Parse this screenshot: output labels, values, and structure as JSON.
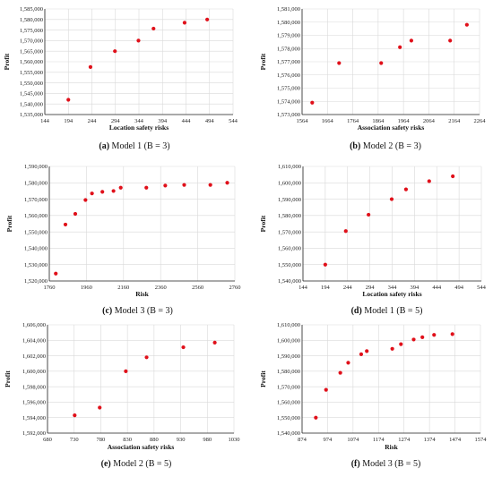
{
  "figure": {
    "marker_color": "#e0101a",
    "axis_color": "#222222",
    "grid_color": "#d9d9d9"
  },
  "chart_data": [
    {
      "type": "scatter",
      "caption_letter": "(a)",
      "caption_rest": " Model 1 (B = 3)",
      "xlabel": "Location safety risks",
      "ylabel": "Profit",
      "xlim": [
        144,
        544
      ],
      "ylim": [
        1535000,
        1585000
      ],
      "xticks": [
        144,
        194,
        244,
        294,
        344,
        394,
        444,
        494,
        544
      ],
      "xtick_labels": [
        "144",
        "194",
        "244",
        "294",
        "344",
        "394",
        "444",
        "494",
        "544"
      ],
      "yticks": [
        1535000,
        1540000,
        1545000,
        1550000,
        1555000,
        1560000,
        1565000,
        1570000,
        1575000,
        1580000,
        1585000
      ],
      "ytick_labels": [
        "1,535,000",
        "1,540,000",
        "1,545,000",
        "1,550,000",
        "1,555,000",
        "1,560,000",
        "1,565,000",
        "1,570,000",
        "1,575,000",
        "1,580,000",
        "1,585,000"
      ],
      "grid": true,
      "x": [
        194,
        241,
        293,
        343,
        375,
        441,
        489
      ],
      "y": [
        1542000,
        1557500,
        1565000,
        1570000,
        1575700,
        1578500,
        1580000
      ]
    },
    {
      "type": "scatter",
      "caption_letter": "(b)",
      "caption_rest": " Model 2 (B = 3)",
      "xlabel": "Association safety risks",
      "ylabel": "Profit",
      "xlim": [
        1564,
        2264
      ],
      "ylim": [
        1573000,
        1581000
      ],
      "xticks": [
        1564,
        1664,
        1764,
        1864,
        1964,
        2064,
        2164,
        2264
      ],
      "xtick_labels": [
        "1564",
        "1664",
        "1764",
        "1864",
        "1964",
        "2064",
        "2164",
        "2264"
      ],
      "yticks": [
        1573000,
        1574000,
        1575000,
        1576000,
        1577000,
        1578000,
        1579000,
        1580000,
        1581000
      ],
      "ytick_labels": [
        "1,573,000",
        "1,574,000",
        "1,575,000",
        "1,576,000",
        "1,577,000",
        "1,578,000",
        "1,579,000",
        "1,580,000",
        "1,581,000"
      ],
      "grid": true,
      "x": [
        1604,
        1710,
        1876,
        1950,
        1995,
        2148,
        2214
      ],
      "y": [
        1573900,
        1576900,
        1576900,
        1578100,
        1578600,
        1578600,
        1579800
      ]
    },
    {
      "type": "scatter",
      "caption_letter": "(c)",
      "caption_rest": " Model 3 (B = 3)",
      "xlabel": "Risk",
      "ylabel": "Profit",
      "xlim": [
        1760,
        2760
      ],
      "ylim": [
        1520000,
        1590000
      ],
      "xticks": [
        1760,
        1960,
        2160,
        2360,
        2560,
        2760
      ],
      "xtick_labels": [
        "1760",
        "1960",
        "2160",
        "2360",
        "2560",
        "2760"
      ],
      "yticks": [
        1520000,
        1530000,
        1540000,
        1550000,
        1560000,
        1570000,
        1580000,
        1590000
      ],
      "ytick_labels": [
        "1,520,000",
        "1,530,000",
        "1,540,000",
        "1,550,000",
        "1,560,000",
        "1,570,000",
        "1,580,000",
        "1,590,000"
      ],
      "grid": true,
      "x": [
        1795,
        1847,
        1900,
        1955,
        1990,
        2046,
        2106,
        2145,
        2283,
        2385,
        2487,
        2628,
        2719
      ],
      "y": [
        1524500,
        1554500,
        1561000,
        1569500,
        1573500,
        1574500,
        1575000,
        1577000,
        1577000,
        1578300,
        1578700,
        1578700,
        1580000
      ]
    },
    {
      "type": "scatter",
      "caption_letter": "(d)",
      "caption_rest": " Model 1 (B = 5)",
      "xlabel": "Location safety risks",
      "ylabel": "Profit",
      "xlim": [
        144,
        544
      ],
      "ylim": [
        1540000,
        1610000
      ],
      "xticks": [
        144,
        194,
        244,
        294,
        344,
        394,
        444,
        494,
        544
      ],
      "xtick_labels": [
        "144",
        "194",
        "244",
        "294",
        "344",
        "394",
        "444",
        "494",
        "544"
      ],
      "yticks": [
        1540000,
        1550000,
        1560000,
        1570000,
        1580000,
        1590000,
        1600000,
        1610000
      ],
      "ytick_labels": [
        "1,540,000",
        "1,550,000",
        "1,560,000",
        "1,570,000",
        "1,580,000",
        "1,590,000",
        "1,600,000",
        "1,610,000"
      ],
      "grid": true,
      "x": [
        194,
        240,
        291,
        343,
        375,
        427,
        480
      ],
      "y": [
        1550000,
        1570500,
        1580500,
        1590000,
        1596000,
        1601000,
        1604000
      ]
    },
    {
      "type": "scatter",
      "caption_letter": "(e)",
      "caption_rest": " Model 2 (B = 5)",
      "xlabel": "Association safety risks",
      "ylabel": "Profit",
      "xlim": [
        680,
        1030
      ],
      "ylim": [
        1592000,
        1606000
      ],
      "xticks": [
        680,
        730,
        780,
        830,
        880,
        930,
        980,
        1030
      ],
      "xtick_labels": [
        "680",
        "730",
        "780",
        "830",
        "880",
        "930",
        "980",
        "1030"
      ],
      "yticks": [
        1592000,
        1594000,
        1596000,
        1598000,
        1600000,
        1602000,
        1604000,
        1606000
      ],
      "ytick_labels": [
        "1,592,000",
        "1,594,000",
        "1,596,000",
        "1,598,000",
        "1,600,000",
        "1,602,000",
        "1,604,000",
        "1,606,000"
      ],
      "grid": true,
      "x": [
        731,
        778,
        827,
        866,
        935,
        994
      ],
      "y": [
        1594300,
        1595300,
        1600000,
        1601800,
        1603100,
        1603700
      ]
    },
    {
      "type": "scatter",
      "caption_letter": "(f)",
      "caption_rest": " Model 3 (B = 5)",
      "xlabel": "Risk",
      "ylabel": "Profit",
      "xlim": [
        874,
        1574
      ],
      "ylim": [
        1540000,
        1610000
      ],
      "xticks": [
        874,
        974,
        1074,
        1174,
        1274,
        1374,
        1474,
        1574
      ],
      "xtick_labels": [
        "874",
        "974",
        "1074",
        "1174",
        "1274",
        "1374",
        "1474",
        "1574"
      ],
      "yticks": [
        1540000,
        1550000,
        1560000,
        1570000,
        1580000,
        1590000,
        1600000,
        1610000
      ],
      "ytick_labels": [
        "1,540,000",
        "1,550,000",
        "1,560,000",
        "1,570,000",
        "1,580,000",
        "1,590,000",
        "1,600,000",
        "1,610,000"
      ],
      "grid": true,
      "x": [
        928,
        968,
        1024,
        1055,
        1106,
        1128,
        1228,
        1262,
        1312,
        1346,
        1392,
        1464
      ],
      "y": [
        1550000,
        1568000,
        1579000,
        1585500,
        1591000,
        1593000,
        1594500,
        1597500,
        1600500,
        1602000,
        1603500,
        1604000
      ]
    }
  ]
}
